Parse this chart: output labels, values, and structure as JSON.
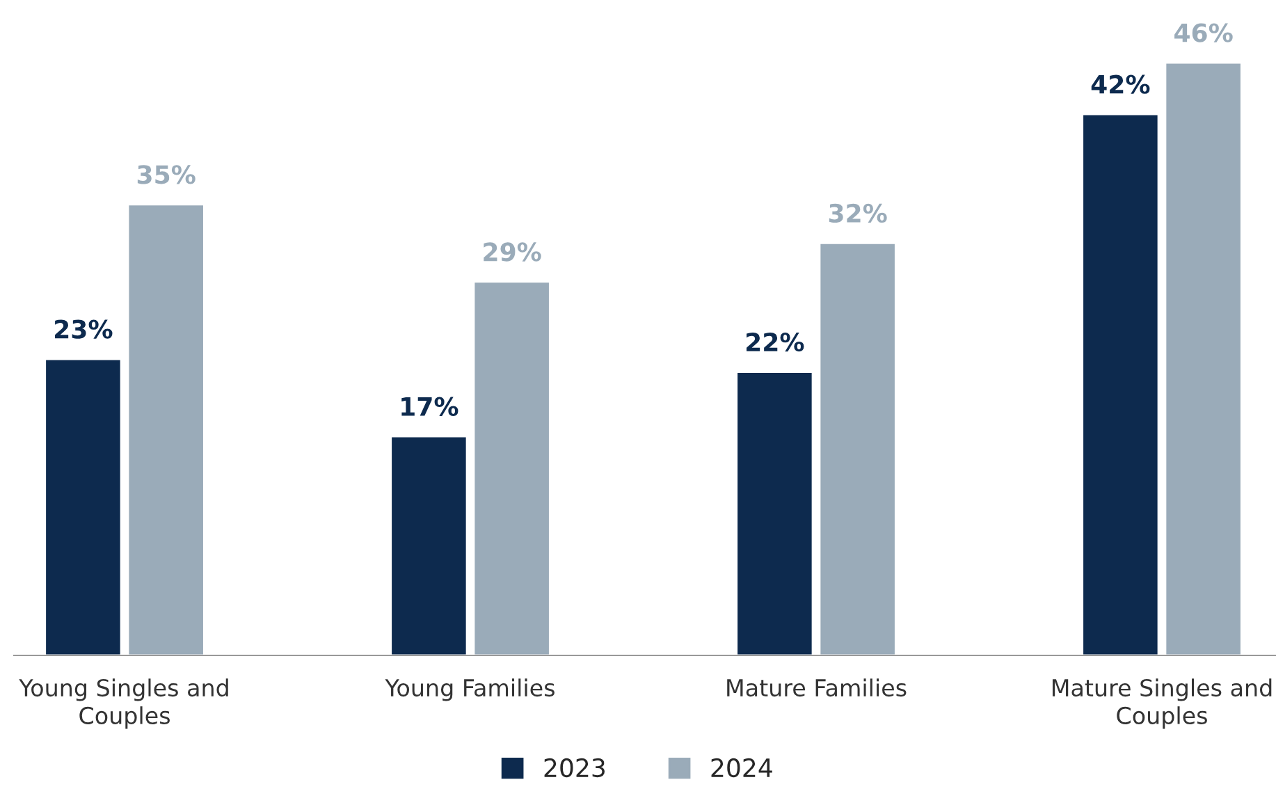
{
  "chart_data": {
    "type": "bar",
    "categories": [
      "Young Singles and Couples",
      "Young Families",
      "Mature Families",
      "Mature Singles and Couples"
    ],
    "series": [
      {
        "name": "2023",
        "color": "#0d2a4e",
        "values": [
          23,
          17,
          22,
          42
        ],
        "value_labels": [
          "23%",
          "17%",
          "22%",
          "42%"
        ]
      },
      {
        "name": "2024",
        "color": "#9aabb9",
        "values": [
          35,
          29,
          32,
          46
        ],
        "value_labels": [
          "35%",
          "29%",
          "32%",
          "46%"
        ]
      }
    ],
    "legend": "bottom",
    "grid": false
  }
}
